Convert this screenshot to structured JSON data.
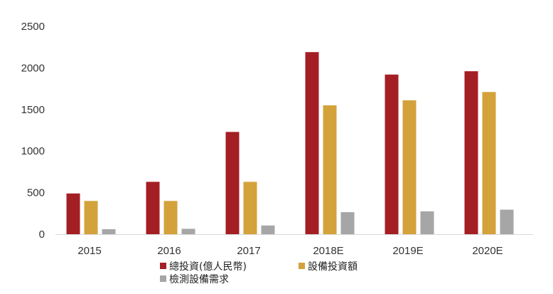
{
  "chart_data": {
    "type": "bar",
    "title": "",
    "xlabel": "",
    "ylabel": "",
    "categories": [
      "2015",
      "2016",
      "2017",
      "2018E",
      "2019E",
      "2020E"
    ],
    "series": [
      {
        "name": "總投資(億人民幣)",
        "color": "#a31f24",
        "values": [
          490,
          630,
          1230,
          2190,
          1920,
          1960
        ]
      },
      {
        "name": "設備投資額",
        "color": "#d4a23b",
        "values": [
          400,
          400,
          630,
          1550,
          1610,
          1710
        ]
      },
      {
        "name": "檢測設備需求",
        "color": "#a6a6a6",
        "values": [
          60,
          65,
          105,
          265,
          275,
          295
        ]
      }
    ],
    "ylim": [
      0,
      2500
    ],
    "yticks": [
      0,
      500,
      1000,
      1500,
      2000,
      2500
    ],
    "grid": false,
    "legend_position": "bottom"
  }
}
